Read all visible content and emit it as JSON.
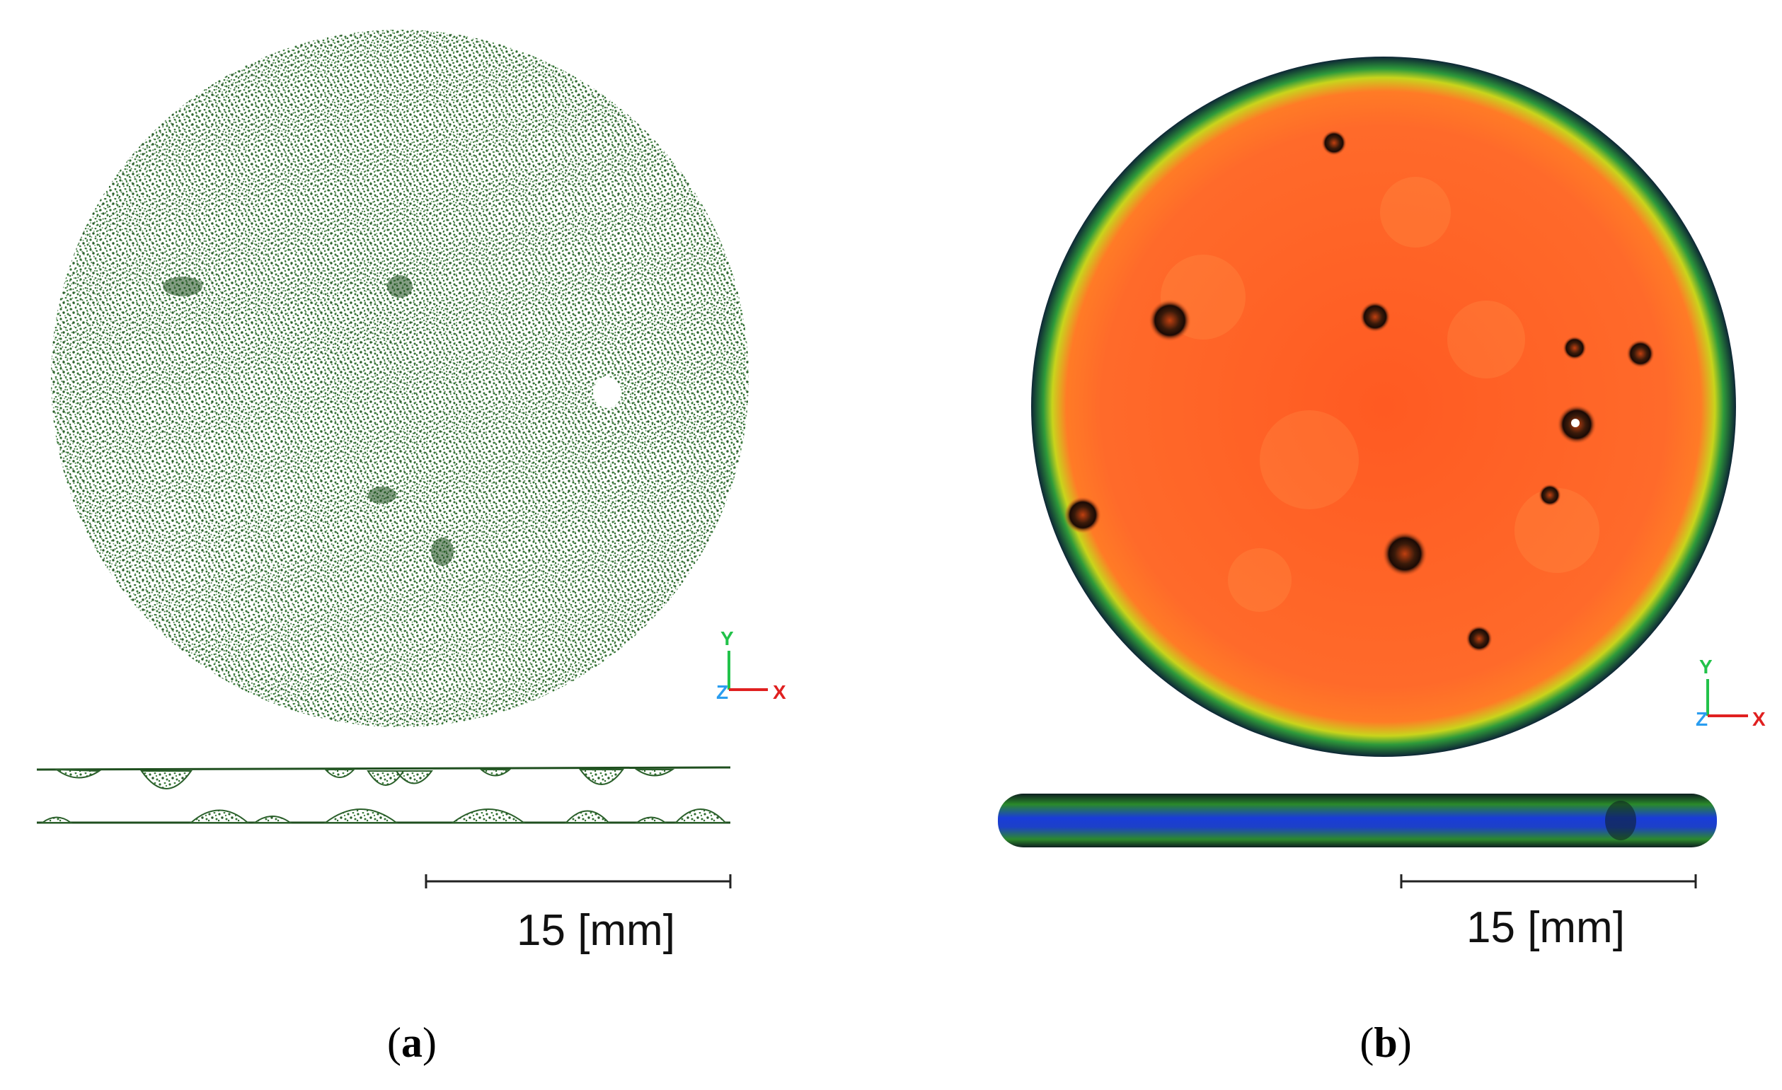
{
  "panels": [
    {
      "label_open": "(",
      "label_letter": "a",
      "label_close": ")",
      "scale_text": "15 [mm]",
      "axes": {
        "y": "Y",
        "z": "Z",
        "x": "X"
      }
    },
    {
      "label_open": "(",
      "label_letter": "b",
      "label_close": ")",
      "scale_text": "15 [mm]",
      "axes": {
        "y": "Y",
        "z": "Z",
        "x": "X"
      }
    }
  ],
  "colors": {
    "pointcloud": "#2e6b2e",
    "surface_main": "#ff5a1f",
    "surface_rim_outer": "#0f2a3a",
    "surface_rim_mid": "#1e7a3a",
    "surface_rim_inner": "#b9d11a",
    "side_blue": "#1a3cd8",
    "axis_y": "#22c24a",
    "axis_z": "#2a9df0",
    "axis_x": "#e02020"
  }
}
